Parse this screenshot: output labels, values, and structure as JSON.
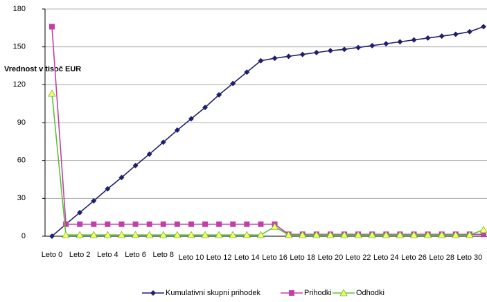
{
  "chart_data": {
    "type": "line",
    "y_label": "Vrednost v tisoč EUR",
    "categories": [
      "Leto 0",
      null,
      "Leto 2",
      null,
      "Leto 4",
      null,
      "Leto 6",
      null,
      "Leto 8",
      null,
      "Leto 10",
      null,
      "Leto 12",
      null,
      "Leto 14",
      null,
      "Leto 16",
      null,
      "Leto 18",
      null,
      "Leto 20",
      null,
      "Leto 22",
      null,
      "Leto 24",
      null,
      "Leto 26",
      null,
      "Leto 28",
      null,
      "Leto 30",
      null
    ],
    "series": [
      {
        "name": "Kumulativni skupni prihodek",
        "color": "#1f1f6e",
        "marker": "diamond",
        "values": [
          0,
          9.5,
          18.7,
          28,
          37.5,
          46.5,
          56,
          65,
          74.5,
          84,
          93,
          102,
          112,
          121,
          130,
          139,
          141,
          142.5,
          144,
          145.5,
          147,
          148,
          149.5,
          151,
          152.5,
          154,
          155.5,
          157,
          158.5,
          160,
          162,
          166
        ]
      },
      {
        "name": "Prihodki",
        "color": "#c23fa8",
        "marker": "square",
        "values": [
          166,
          9.5,
          9.5,
          9.5,
          9.5,
          9.5,
          9.5,
          9.5,
          9.5,
          9.5,
          9.5,
          9.5,
          9.5,
          9.5,
          9.5,
          9.5,
          9.5,
          1.5,
          1.5,
          1.5,
          1.5,
          1.5,
          1.5,
          1.5,
          1.5,
          1.5,
          1.5,
          1.5,
          1.5,
          1.5,
          1.5,
          1.5
        ]
      },
      {
        "name": "Odhodki",
        "color": "#5cc234",
        "marker": "triangle",
        "values": [
          113,
          1,
          1,
          1,
          1,
          1,
          1,
          1,
          1,
          1,
          1,
          1,
          1,
          1,
          1,
          1,
          7.5,
          1,
          1,
          1,
          1,
          1,
          1,
          1,
          1,
          1,
          1,
          1,
          1,
          1,
          1,
          5
        ]
      }
    ],
    "ylim": [
      0,
      180
    ],
    "yticks": [
      0,
      30,
      60,
      90,
      120,
      150,
      180
    ],
    "grid": true,
    "legend": "bottom"
  }
}
